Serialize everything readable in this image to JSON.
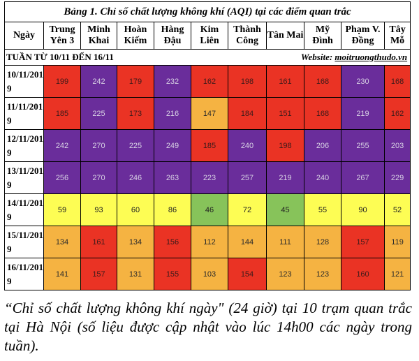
{
  "caption": "Bảng 1. Chỉ số chất lượng không khí (AQI) tại các điểm quan trắc",
  "columns": [
    "Ngày",
    "Trung Yên 3",
    "Minh Khai",
    "Hoàn Kiếm",
    "Hàng Đậu",
    "Kim Liên",
    "Thành Công",
    "Tân Mai",
    "Mỹ Đình",
    "Phạm V. Đồng",
    "Tây Mỗ"
  ],
  "week_label": "TUẦN TỪ 10/11 ĐẾN 16/11",
  "website_label": "Website:",
  "website_url": "moitruongthudo.vn",
  "level_colors": {
    "red": "#ea3324",
    "purple": "#6a2d9b",
    "yellow": "#fdfd54",
    "orange": "#f5b342",
    "green": "#87c35a"
  },
  "rows": [
    {
      "date": "10/11/2019",
      "values": [
        "199",
        "242",
        "179",
        "232",
        "162",
        "198",
        "161",
        "168",
        "230",
        "168"
      ],
      "levels": [
        "red",
        "purple",
        "red",
        "purple",
        "red",
        "red",
        "red",
        "red",
        "purple",
        "red"
      ]
    },
    {
      "date": "11/11/2019",
      "values": [
        "185",
        "225",
        "173",
        "216",
        "147",
        "184",
        "151",
        "168",
        "219",
        "162"
      ],
      "levels": [
        "red",
        "purple",
        "red",
        "purple",
        "orange",
        "red",
        "red",
        "red",
        "purple",
        "red"
      ]
    },
    {
      "date": "12/11/2019",
      "values": [
        "242",
        "270",
        "225",
        "249",
        "185",
        "240",
        "198",
        "206",
        "255",
        "203"
      ],
      "levels": [
        "purple",
        "purple",
        "purple",
        "purple",
        "red",
        "purple",
        "red",
        "purple",
        "purple",
        "purple"
      ]
    },
    {
      "date": "13/11/2019",
      "values": [
        "256",
        "270",
        "246",
        "263",
        "223",
        "257",
        "219",
        "240",
        "267",
        "229"
      ],
      "levels": [
        "purple",
        "purple",
        "purple",
        "purple",
        "purple",
        "purple",
        "purple",
        "purple",
        "purple",
        "purple"
      ]
    },
    {
      "date": "14/11/2019",
      "values": [
        "59",
        "93",
        "60",
        "86",
        "46",
        "72",
        "45",
        "55",
        "90",
        "52"
      ],
      "levels": [
        "yellow",
        "yellow",
        "yellow",
        "yellow",
        "green",
        "yellow",
        "green",
        "yellow",
        "yellow",
        "yellow"
      ]
    },
    {
      "date": "15/11/2019",
      "values": [
        "134",
        "161",
        "134",
        "156",
        "112",
        "144",
        "111",
        "128",
        "157",
        "119"
      ],
      "levels": [
        "orange",
        "red",
        "orange",
        "red",
        "orange",
        "orange",
        "orange",
        "orange",
        "red",
        "orange"
      ]
    },
    {
      "date": "16/11/2019",
      "values": [
        "141",
        "157",
        "131",
        "155",
        "103",
        "154",
        "123",
        "123",
        "160",
        "121"
      ],
      "levels": [
        "orange",
        "red",
        "orange",
        "red",
        "orange",
        "red",
        "orange",
        "orange",
        "red",
        "orange"
      ]
    }
  ],
  "footnote": "“Chỉ số chất lượng không khí ngày\" (24 giờ) tại 10 trạm quan trắc tại Hà Nội (số liệu được cập nhật vào lúc 14h00 các ngày trong tuần)."
}
